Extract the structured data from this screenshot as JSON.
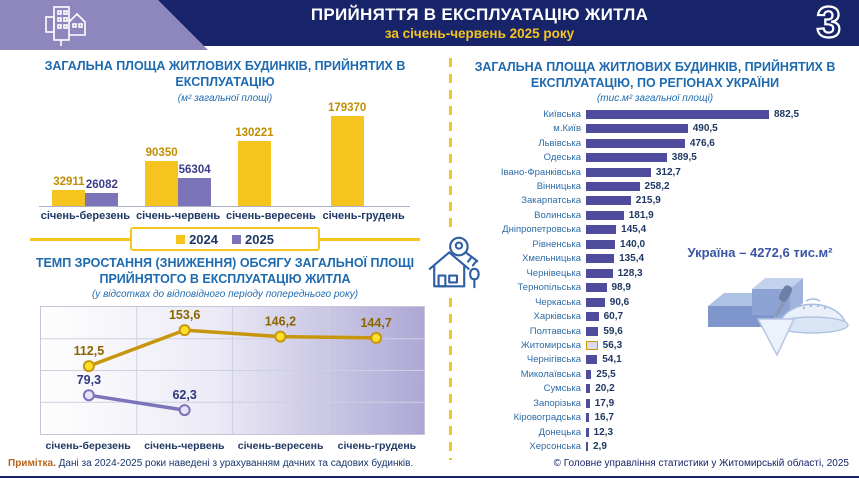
{
  "header": {
    "title": "ПРИЙНЯТТЯ В ЕКСПЛУАТАЦІЮ ЖИТЛА",
    "subtitle": "за січень-червень 2025 року",
    "page_number": "3"
  },
  "colors": {
    "navy": "#17246A",
    "yellow": "#F5C41E",
    "purple": "#7B74B8",
    "region_bar": "#504C9D",
    "title_blue": "#1D6AB0"
  },
  "legend": {
    "items": [
      {
        "label": "2024",
        "color": "#F5C41E"
      },
      {
        "label": "2025",
        "color": "#7B74B8"
      }
    ]
  },
  "chart_data": [
    {
      "type": "bar",
      "title": "ЗАГАЛЬНА ПЛОЩА ЖИТЛОВИХ БУДИНКІВ, ПРИЙНЯТИХ В ЕКСПЛУАТАЦІЮ",
      "subtitle": "(м² загальної площі)",
      "categories": [
        "січень-березень",
        "січень-червень",
        "січень-вересень",
        "січень-грудень"
      ],
      "series": [
        {
          "name": "2024",
          "color": "#F5C41E",
          "label_color": "#BF8F00",
          "values": [
            32911,
            90350,
            130221,
            179370
          ]
        },
        {
          "name": "2025",
          "color": "#7B74B8",
          "label_color": "#3F3C8C",
          "values": [
            26082,
            56304,
            null,
            null
          ]
        }
      ],
      "ylim": [
        0,
        190000
      ],
      "legend_position": "bottom",
      "grid": false
    },
    {
      "type": "line",
      "title": "ТЕМП ЗРОСТАННЯ (ЗНИЖЕННЯ) ОБСЯГУ ЗАГАЛЬНОЇ ПЛОЩІ ПРИЙНЯТОГО В ЕКСПЛУАТАЦІЮ ЖИТЛА",
      "subtitle": "(у відсотках до відповідного періоду попереднього року)",
      "categories": [
        "січень-березень",
        "січень-червень",
        "січень-вересень",
        "січень-грудень"
      ],
      "series": [
        {
          "name": "2024",
          "color": "#C8960C",
          "marker_fill": "#FFE028",
          "label_color": "#8A6600",
          "values": [
            112.5,
            153.6,
            146.2,
            144.7
          ],
          "value_labels": [
            "112,5",
            "153,6",
            "146,2",
            "144,7"
          ]
        },
        {
          "name": "2025",
          "color": "#7B74B8",
          "marker_fill": "#E6E3F4",
          "label_color": "#2F3580",
          "values": [
            79.3,
            62.3,
            null,
            null
          ],
          "value_labels": [
            "79,3",
            "62,3",
            null,
            null
          ]
        }
      ],
      "ylim": [
        35,
        180
      ],
      "grid": true
    },
    {
      "type": "bar-horizontal",
      "title": "ЗАГАЛЬНА ПЛОЩА ЖИТЛОВИХ БУДИНКІВ, ПРИЙНЯТИХ В ЕКСПЛУАТАЦІЮ, ПО РЕГІОНАХ УКРАЇНИ",
      "subtitle": "(тис.м² загальної площі)",
      "categories": [
        "Київська",
        "м.Київ",
        "Львівська",
        "Одеська",
        "Івано-Франківська",
        "Вінницька",
        "Закарпатська",
        "Волинська",
        "Дніпропетровська",
        "Рівненська",
        "Хмельницька",
        "Чернівецька",
        "Тернопільська",
        "Черкаська",
        "Харківська",
        "Полтавська",
        "Житомирська",
        "Чернігівська",
        "Миколаївська",
        "Сумська",
        "Запорізька",
        "Кіровоградська",
        "Донецька",
        "Херсонська"
      ],
      "values": [
        882.5,
        490.5,
        476.6,
        389.5,
        312.7,
        258.2,
        215.9,
        181.9,
        145.4,
        140.0,
        135.4,
        128.3,
        98.9,
        90.6,
        60.7,
        59.6,
        56.3,
        54.1,
        25.5,
        20.2,
        17.9,
        16.7,
        12.3,
        2.9
      ],
      "value_labels": [
        "882,5",
        "490,5",
        "476,6",
        "389,5",
        "312,7",
        "258,2",
        "215,9",
        "181,9",
        "145,4",
        "140,0",
        "135,4",
        "128,3",
        "98,9",
        "90,6",
        "60,7",
        "59,6",
        "56,3",
        "54,1",
        "25,5",
        "20,2",
        "17,9",
        "16,7",
        "12,3",
        "2,9"
      ],
      "highlight": "Житомирська",
      "annotation": "Україна – 4272,6 тис.м²",
      "xlim": [
        0,
        900
      ]
    }
  ],
  "ukraine_total": "Україна – 4272,6 тис.м²",
  "note": {
    "label": "Примітка.",
    "text": "Дані за 2024-2025 роки наведені з урахуванням дачних та садових будинків."
  },
  "copyright": "© Головне управління статистики у Житомирській області, 2025",
  "icons": {
    "buildings": "buildings-icon",
    "house_key": "house-key-icon",
    "construction": "construction-illustration"
  }
}
